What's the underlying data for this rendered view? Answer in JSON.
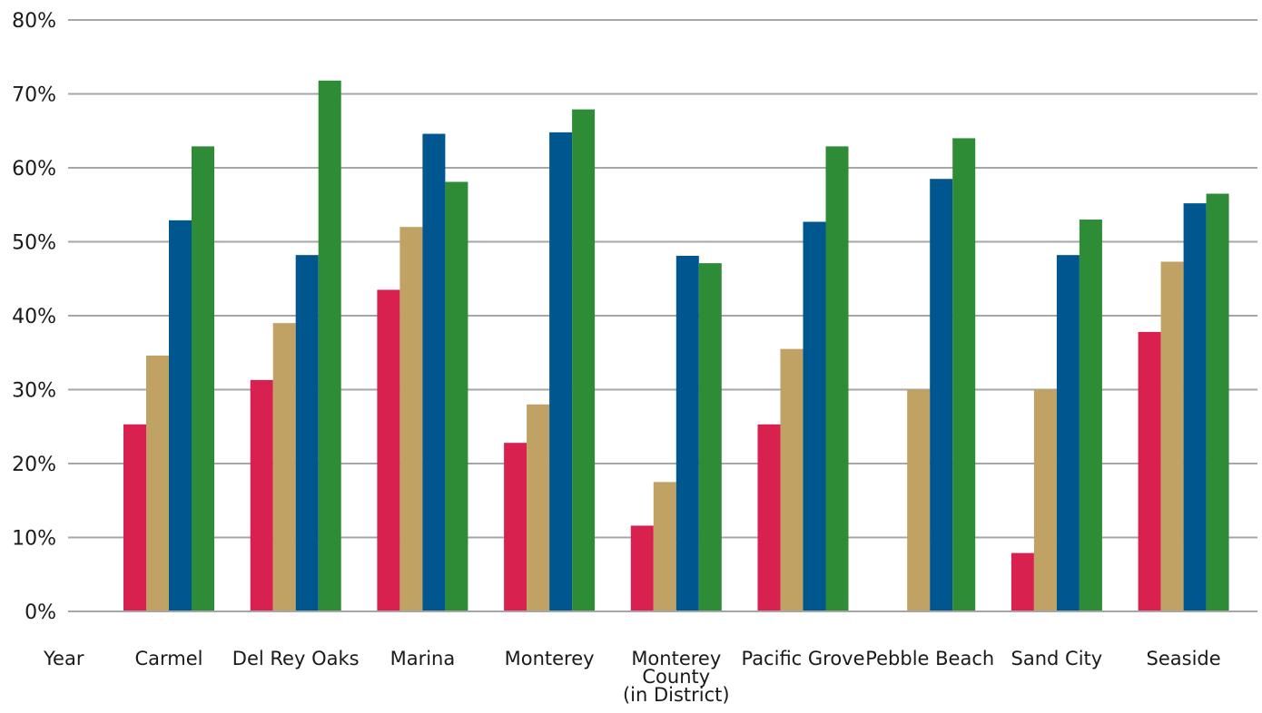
{
  "chart_data": {
    "type": "bar",
    "title": "",
    "xlabel": "Year",
    "ylabel": "",
    "ylim": [
      0,
      80
    ],
    "y_ticks": [
      "0%",
      "10%",
      "20%",
      "30%",
      "40%",
      "50%",
      "60%",
      "70%",
      "80%"
    ],
    "grid": true,
    "categories": [
      "Carmel",
      "Del Rey Oaks",
      "Marina",
      "Monterey",
      "Monterey County (in District)",
      "Pacific Grove",
      "Pebble Beach",
      "Sand City",
      "Seaside"
    ],
    "category_lines": [
      [
        "Carmel"
      ],
      [
        "Del Rey Oaks"
      ],
      [
        "Marina"
      ],
      [
        "Monterey"
      ],
      [
        "Monterey",
        "County",
        "(in District)"
      ],
      [
        "Pacific Grove"
      ],
      [
        "Pebble Beach"
      ],
      [
        "Sand City"
      ],
      [
        "Seaside"
      ]
    ],
    "series": [
      {
        "color": "#d9214f",
        "values": [
          25.3,
          31.3,
          43.5,
          22.8,
          11.6,
          25.3,
          null,
          7.9,
          37.8
        ]
      },
      {
        "color": "#c0a264",
        "values": [
          34.6,
          39.0,
          52.0,
          28.0,
          17.5,
          35.5,
          30.0,
          30.0,
          47.3
        ]
      },
      {
        "color": "#00568f",
        "values": [
          52.9,
          48.2,
          64.6,
          64.8,
          48.1,
          52.7,
          58.5,
          48.2,
          55.2
        ]
      },
      {
        "color": "#2e8b36",
        "values": [
          62.9,
          71.8,
          58.1,
          67.9,
          47.1,
          62.9,
          64.0,
          53.0,
          56.5
        ]
      }
    ]
  }
}
